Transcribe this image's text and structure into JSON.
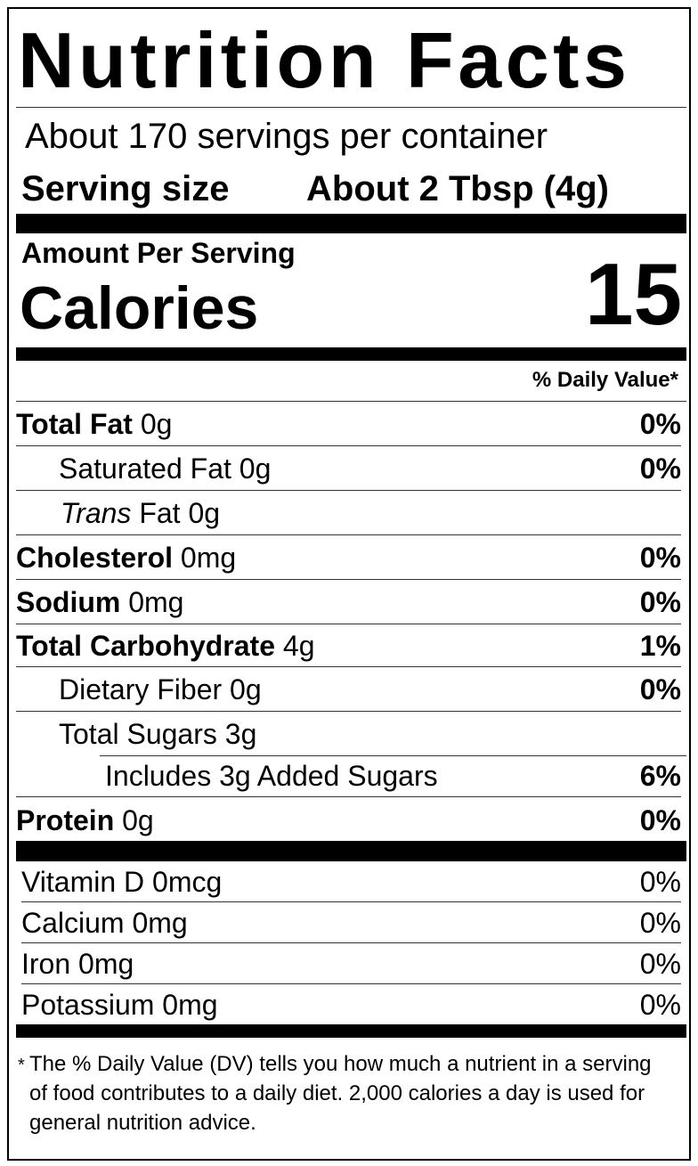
{
  "title": "Nutrition Facts",
  "servings": "About 170 servings per container",
  "serving_size": {
    "label": "Serving size",
    "value": "About 2 Tbsp (4g)"
  },
  "amount_per_serving": "Amount Per Serving",
  "calories": {
    "label": "Calories",
    "value": 15
  },
  "daily_value_header": "% Daily Value*",
  "nutrients": [
    {
      "name": "Total Fat",
      "amount": "0g",
      "dv": "0%"
    },
    {
      "name": "Saturated Fat",
      "amount": "0g",
      "dv": "0%"
    },
    {
      "name_italic": "Trans",
      "name": "Fat",
      "amount": "0g"
    },
    {
      "name": "Cholesterol",
      "amount": "0mg",
      "dv": "0%"
    },
    {
      "name": "Sodium",
      "amount": "0mg",
      "dv": "0%"
    },
    {
      "name": "Total Carbohydrate",
      "amount": "4g",
      "dv": "1%"
    },
    {
      "name": "Dietary Fiber",
      "amount": "0g",
      "dv": "0%"
    },
    {
      "name": "Total Sugars",
      "amount": "3g"
    },
    {
      "name": "Includes 3g Added Sugars",
      "dv": "6%"
    },
    {
      "name": "Protein",
      "amount": "0g",
      "dv": "0%"
    }
  ],
  "vitamins": [
    {
      "name": "Vitamin D",
      "amount": "0mcg",
      "dv": "0%"
    },
    {
      "name": "Calcium",
      "amount": "0mg",
      "dv": "0%"
    },
    {
      "name": "Iron",
      "amount": "0mg",
      "dv": "0%"
    },
    {
      "name": "Potassium",
      "amount": "0mg",
      "dv": "0%"
    }
  ],
  "footnote": {
    "mark": "*",
    "text": "The % Daily Value (DV) tells you how much a nutrient in a serving of food contributes to a daily diet. 2,000 calories a day is used for general nutrition advice."
  }
}
